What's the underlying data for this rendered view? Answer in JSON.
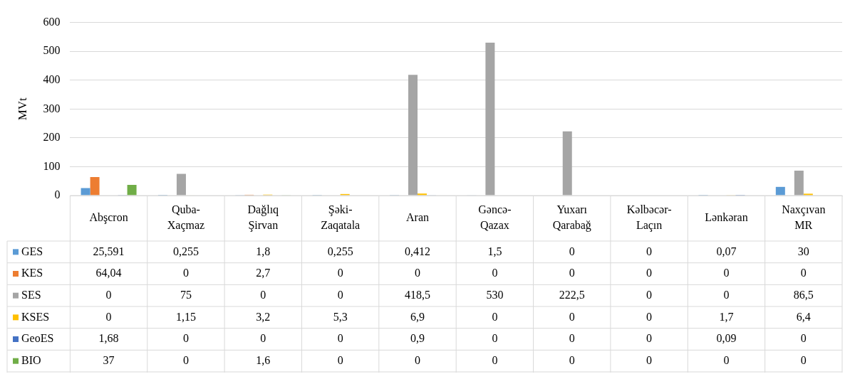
{
  "chart_data": {
    "type": "bar",
    "ylabel": "MVt",
    "categories": [
      "Abşcron",
      "Quba-Xaçmaz",
      "Dağlıq Şirvan",
      "Şəki-Zaqatala",
      "Aran",
      "Gəncə-Qazax",
      "Yuxarı Qarabağ",
      "Kəlbəcər-Laçın",
      "Lənkəran",
      "Naxçıvan MR"
    ],
    "ylim": [
      0,
      600
    ],
    "yticks": [
      0,
      100,
      200,
      300,
      400,
      500,
      600
    ],
    "grid": "y",
    "legend": "bottom",
    "series": [
      {
        "name": "GES",
        "color": "#5b9bd5",
        "values": [
          25.591,
          0.255,
          1.8,
          0.255,
          0.412,
          1.5,
          0,
          0,
          0.07,
          30
        ],
        "value_labels": [
          "25,591",
          "0,255",
          "1,8",
          "0,255",
          "0,412",
          "1,5",
          "0",
          "0",
          "0,07",
          "30"
        ]
      },
      {
        "name": "KES",
        "color": "#ed7d31",
        "values": [
          64.04,
          0,
          2.7,
          0,
          0,
          0,
          0,
          0,
          0,
          0
        ],
        "value_labels": [
          "64,04",
          "0",
          "2,7",
          "0",
          "0",
          "0",
          "0",
          "0",
          "0",
          "0"
        ]
      },
      {
        "name": "SES",
        "color": "#a5a5a5",
        "values": [
          0,
          75,
          0,
          0,
          418.5,
          530,
          222.5,
          0,
          0,
          86.5
        ],
        "value_labels": [
          "0",
          "75",
          "0",
          "0",
          "418,5",
          "530",
          "222,5",
          "0",
          "0",
          "86,5"
        ]
      },
      {
        "name": "KSES",
        "color": "#ffc000",
        "values": [
          0,
          1.15,
          3.2,
          5.3,
          6.9,
          0,
          0,
          0,
          1.7,
          6.4
        ],
        "value_labels": [
          "0",
          "1,15",
          "3,2",
          "5,3",
          "6,9",
          "0",
          "0",
          "0",
          "1,7",
          "6,4"
        ]
      },
      {
        "name": "GeoES",
        "color": "#4472c4",
        "values": [
          1.68,
          0,
          0,
          0,
          0.9,
          0,
          0,
          0,
          0.09,
          0
        ],
        "value_labels": [
          "1,68",
          "0",
          "0",
          "0",
          "0,9",
          "0",
          "0",
          "0",
          "0,09",
          "0"
        ]
      },
      {
        "name": "BIO",
        "color": "#70ad47",
        "values": [
          37,
          0,
          1.6,
          0,
          0,
          0,
          0,
          0,
          0,
          0
        ],
        "value_labels": [
          "37",
          "0",
          "1,6",
          "0",
          "0",
          "0",
          "0",
          "0",
          "0",
          "0"
        ]
      }
    ]
  }
}
